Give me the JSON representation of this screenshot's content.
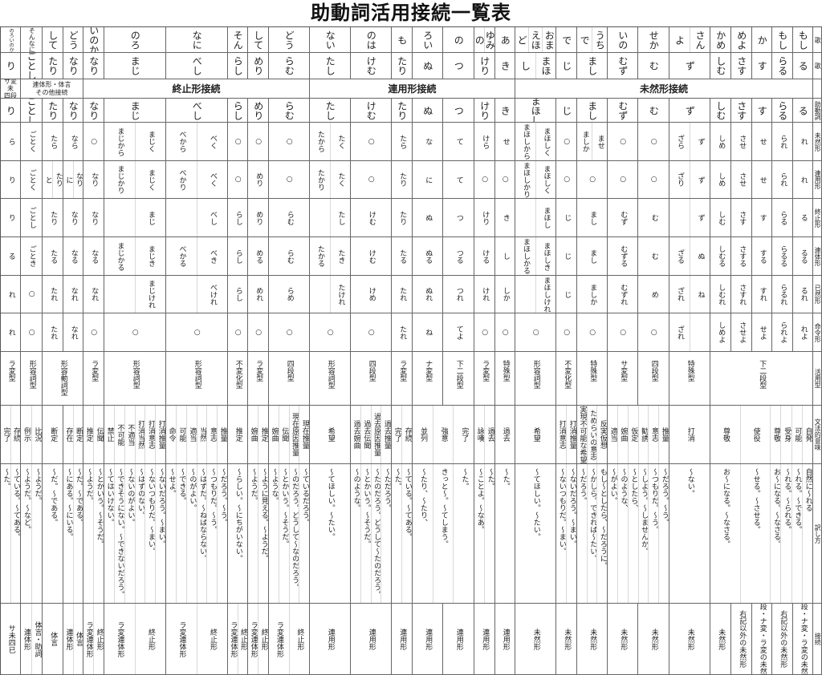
{
  "title": "助動詞活用接続一覧表",
  "row_labels": {
    "song1": "歌",
    "song2": "歌",
    "conn_header": "",
    "aux": "助動詞",
    "forms": [
      "未然形",
      "連用形",
      "終止形",
      "連体形",
      "已然形",
      "命令形"
    ],
    "type": "活用型",
    "meaning": "文法的意味",
    "translation": "訳し方",
    "connection": "接続"
  },
  "columns": [
    {
      "song1": "のろいのか",
      "song2": "り",
      "aux": "り",
      "forms": [
        "ら",
        "り",
        "り",
        "る",
        "れ",
        "れ"
      ]
    },
    {
      "song1": "そんなに",
      "song2": "ごとし",
      "aux": "ごとし",
      "forms": [
        "ごとく",
        "ごとく",
        "ごとし",
        "ごとき",
        "○",
        "○"
      ]
    },
    {
      "song1": "して",
      "song2": "たり",
      "aux": "たり",
      "forms": [
        "たら",
        [
          "たり",
          "と"
        ],
        "たり",
        "たる",
        "たれ",
        "たれ"
      ]
    },
    {
      "song1": "どう",
      "song2": "なり",
      "aux": "なり",
      "forms": [
        "なら",
        [
          "なり",
          "に"
        ],
        "なり",
        "なる",
        "なれ",
        "なれ"
      ]
    },
    {
      "song1": "いのか",
      "song2": "なり",
      "aux": "なり",
      "forms": [
        "○",
        "なり",
        "なり",
        "なる",
        "なれ",
        "○"
      ]
    },
    {
      "song1": "のろ",
      "song2": "まじ",
      "aux": "まじ",
      "forms": [
        [
          "まじく",
          "まじから"
        ],
        [
          "まじく",
          "まじかり"
        ],
        [
          "まじ",
          ""
        ],
        [
          "まじき",
          "まじかる"
        ],
        [
          "まじけれ",
          ""
        ],
        "○"
      ]
    },
    {
      "song1": "なに",
      "song2": "べし",
      "aux": "べし",
      "forms": [
        [
          "べく",
          "べから"
        ],
        [
          "べく",
          "べかり"
        ],
        [
          "べし",
          ""
        ],
        [
          "べき",
          "べかる"
        ],
        [
          "べけれ",
          ""
        ],
        "○"
      ]
    },
    {
      "song1": "そん",
      "song2": "らし",
      "aux": "らし",
      "forms": [
        "○",
        "○",
        "らし",
        "らし",
        "らし",
        "○"
      ]
    },
    {
      "song1": "して",
      "song2": "めり",
      "aux": "めり",
      "forms": [
        "○",
        "めり",
        "めり",
        "める",
        "めれ",
        "○"
      ]
    },
    {
      "song1": "どう",
      "song2": "らむ",
      "aux": "らむ",
      "forms": [
        "○",
        "○",
        "らむ",
        "らむ",
        "らめ",
        "○"
      ]
    },
    {
      "song1": "ない",
      "song2": "たし",
      "aux": "たし",
      "forms": [
        [
          "たく",
          "たから"
        ],
        [
          "たく",
          "たかり"
        ],
        [
          "たし",
          ""
        ],
        [
          "たき",
          "たかる"
        ],
        [
          "たけれ",
          ""
        ],
        "○"
      ]
    },
    {
      "song1": "のは",
      "song2": "けむ",
      "aux": "けむ",
      "forms": [
        "○",
        "○",
        "けむ",
        "けむ",
        "けめ",
        "○"
      ]
    },
    {
      "song1": "も",
      "song2": "たり",
      "aux": "たり",
      "forms": [
        "たら",
        "たり",
        "たり",
        "たる",
        "たれ",
        "たれ"
      ]
    },
    {
      "song1": "ろい",
      "song2": "ぬ",
      "aux": "ぬ",
      "forms": [
        "な",
        "に",
        "ぬ",
        "ぬる",
        "ぬれ",
        "ね"
      ]
    },
    {
      "song1": "の",
      "song2": "つ",
      "aux": "つ",
      "forms": [
        "て",
        "て",
        "つ",
        "つる",
        "つれ",
        "てよ"
      ]
    },
    {
      "song1": [
        "ゆみ",
        "の"
      ],
      "song2": "けり",
      "aux": "けり",
      "forms": [
        "けら",
        "○",
        "けり",
        "ける",
        "けれ",
        "○"
      ]
    },
    {
      "song1": "あ",
      "song2": "き",
      "aux": "き",
      "forms": [
        "せ",
        "○",
        "き",
        "し",
        "しか",
        "○"
      ]
    },
    {
      "song1": [
        "おま",
        "えほ",
        "ど"
      ],
      "song2": [
        "まほ",
        "し"
      ],
      "aux": "まほし",
      "forms": [
        [
          "まほしく",
          "まほしから"
        ],
        [
          "まほしく",
          "まほしかり"
        ],
        [
          "まほし",
          ""
        ],
        [
          "まほしき",
          "まほしかる"
        ],
        [
          "まほしけれ",
          ""
        ],
        "○"
      ]
    },
    {
      "song1": "で",
      "song2": "じ",
      "aux": "じ",
      "forms": [
        "○",
        "○",
        "じ",
        "じ",
        "じ",
        "○"
      ]
    },
    {
      "song1": [
        "うち",
        "で"
      ],
      "song2": "まし",
      "aux": "まし",
      "forms": [
        [
          "ませ",
          "ましか"
        ],
        "○",
        "まし",
        "まし",
        "ましか",
        "○"
      ]
    },
    {
      "song1": "いの",
      "song2": "むず",
      "aux": "むず",
      "forms": [
        "○",
        "○",
        "むず",
        "むずる",
        "むずれ",
        "○"
      ]
    },
    {
      "song1": "せか",
      "song2": "む",
      "aux": "む",
      "forms": [
        "○",
        "○",
        "む",
        "む",
        "め",
        "○"
      ]
    },
    {
      "song1": [
        "さん",
        "よ"
      ],
      "song2": "ず",
      "aux": "ず",
      "forms": [
        [
          "ず",
          "ざら"
        ],
        [
          "ず",
          "ざり"
        ],
        [
          "ず",
          ""
        ],
        [
          "ぬ",
          "ざる"
        ],
        [
          "ね",
          "ざれ"
        ],
        [
          "",
          "ざれ"
        ]
      ]
    },
    {
      "song1": "かめ",
      "song2": "しむ",
      "aux": "しむ",
      "forms": [
        "しめ",
        "しめ",
        "しむ",
        "しむる",
        "しむれ",
        "しめよ"
      ]
    },
    {
      "song1": "めよ",
      "song2": "さす",
      "aux": "さす",
      "forms": [
        "させ",
        "させ",
        "さす",
        "さする",
        "さすれ",
        "させよ"
      ]
    },
    {
      "song1": "か",
      "song2": "す",
      "aux": "す",
      "forms": [
        "せ",
        "せ",
        "す",
        "する",
        "すれ",
        "せよ"
      ]
    },
    {
      "song1": "もし",
      "song2": "らる",
      "aux": "らる",
      "forms": [
        "られ",
        "られ",
        "らる",
        "らるる",
        "らるれ",
        "られよ"
      ]
    },
    {
      "song1": "もし",
      "song2": "る",
      "aux": "る",
      "forms": [
        "れ",
        "れ",
        "る",
        "るる",
        "るれ",
        "れよ"
      ]
    }
  ],
  "connection_groups": [
    {
      "span": 1,
      "label": "サ変\n未\n四段"
    },
    {
      "span": 3,
      "label": "連体形・体言\nその他接続"
    },
    {
      "span": 6,
      "label": "終止形接続"
    },
    {
      "span": 7,
      "label": "連用形接続"
    },
    {
      "span": 11,
      "label": "未然形接続"
    }
  ],
  "types": [
    {
      "span": 1,
      "label": "ラ変型"
    },
    {
      "span": 1,
      "label": "形容詞型"
    },
    {
      "span": 2,
      "label": "形容動詞型"
    },
    {
      "span": 1,
      "label": "ラ変型"
    },
    {
      "span": 1,
      "label": "形容詞型"
    },
    {
      "span": 1,
      "label": "形容詞型"
    },
    {
      "span": 1,
      "label": "不変化型"
    },
    {
      "span": 1,
      "label": "ラ変型"
    },
    {
      "span": 1,
      "label": "四段型"
    },
    {
      "span": 1,
      "label": "形容詞型"
    },
    {
      "span": 1,
      "label": "四段型"
    },
    {
      "span": 1,
      "label": "ラ変型"
    },
    {
      "span": 1,
      "label": "ナ変型"
    },
    {
      "span": 1,
      "label": "下二段型"
    },
    {
      "span": 1,
      "label": "ラ変型"
    },
    {
      "span": 1,
      "label": "特殊型"
    },
    {
      "span": 1,
      "label": "形容詞型"
    },
    {
      "span": 1,
      "label": "不変化型"
    },
    {
      "span": 1,
      "label": "特殊型"
    },
    {
      "span": 1,
      "label": "サ変型"
    },
    {
      "span": 1,
      "label": "四段型"
    },
    {
      "span": 1,
      "label": "特殊型"
    },
    {
      "span": 5,
      "label": "下二段型"
    }
  ],
  "meanings": [
    {
      "span": 1,
      "items": [
        {
          "meaning": "存続",
          "translation": "〜ている。〜てある。"
        },
        {
          "meaning": "完了",
          "translation": "〜た。"
        }
      ]
    },
    {
      "span": 1,
      "items": [
        {
          "meaning": "比況",
          "translation": "〜ようだ。"
        },
        {
          "meaning": "例示",
          "translation": "〜ようだ。〜など。"
        }
      ]
    },
    {
      "span": 1,
      "items": [
        {
          "meaning": "断定",
          "translation": "〜だ。〜である。"
        }
      ]
    },
    {
      "span": 1,
      "items": [
        {
          "meaning": "断定",
          "translation": "〜だ。〜である。"
        },
        {
          "meaning": "存在",
          "translation": "〜にある。〜にいる。"
        }
      ]
    },
    {
      "span": 1,
      "items": [
        {
          "meaning": "伝聞",
          "translation": "〜とかいう。〜そうだ。"
        },
        {
          "meaning": "推定",
          "translation": "〜ようだ。"
        }
      ]
    },
    {
      "span": 1,
      "items": [
        {
          "meaning": "打消推量",
          "translation": "〜ないだろう。〜まい。"
        },
        {
          "meaning": "打消意志",
          "translation": "〜ないつもりだ。〜まい。"
        },
        {
          "meaning": "打消当然",
          "translation": "〜はずのない。"
        },
        {
          "meaning": "不適当",
          "translation": "〜ないのがよい。"
        },
        {
          "meaning": "不可能",
          "translation": "〜できそうにない。〜できないだろう。"
        },
        {
          "meaning": "禁止",
          "translation": "〜てはいけない。"
        }
      ]
    },
    {
      "span": 1,
      "items": [
        {
          "meaning": "推量",
          "translation": "〜だろう。〜う。"
        },
        {
          "meaning": "意志",
          "translation": "〜つもりだ。〜う。"
        },
        {
          "meaning": "当然",
          "translation": "〜はずだ。〜ねばならない。"
        },
        {
          "meaning": "適当",
          "translation": "〜のがよい。"
        },
        {
          "meaning": "可能",
          "translation": "〜できる。"
        },
        {
          "meaning": "命令",
          "translation": "〜せよ。"
        }
      ]
    },
    {
      "span": 1,
      "items": [
        {
          "meaning": "推定",
          "translation": "〜らしい。〜にちがいない。"
        }
      ]
    },
    {
      "span": 1,
      "items": [
        {
          "meaning": "推定",
          "translation": "〜ように見える。〜ようだ。"
        },
        {
          "meaning": "婉曲",
          "translation": "〜ようだ。"
        }
      ]
    },
    {
      "span": 1,
      "items": [
        {
          "meaning": "現在推量",
          "translation": "〜ているだろう。"
        },
        {
          "meaning": "現在原因推量",
          "translation": "〜のだろう。どうして〜なのだろう。"
        },
        {
          "meaning": "伝聞",
          "translation": "〜とかいう。〜そうだ。"
        },
        {
          "meaning": "婉曲",
          "translation": "〜ような。"
        }
      ]
    },
    {
      "span": 1,
      "items": [
        {
          "meaning": "希望",
          "translation": "〜てほしい。〜たい。"
        }
      ]
    },
    {
      "span": 1,
      "items": [
        {
          "meaning": "過去推量",
          "translation": "〜ただろう。"
        },
        {
          "meaning": "過去原因推量",
          "translation": "〜たのだろう。どうして〜たのだろう。"
        },
        {
          "meaning": "過去伝聞",
          "translation": "〜とかいう。〜そうだ。"
        },
        {
          "meaning": "過去婉曲",
          "translation": "〜のような。"
        }
      ]
    },
    {
      "span": 1,
      "items": [
        {
          "meaning": "存続",
          "translation": "〜ている。〜てある。"
        },
        {
          "meaning": "完了",
          "translation": "〜た。"
        }
      ]
    },
    {
      "span": 2,
      "items": [
        {
          "meaning": "完了",
          "translation": "〜た。"
        },
        {
          "meaning": "強意",
          "translation": "きっと〜。〜てしまう。"
        },
        {
          "meaning": "並列",
          "translation": "〜たり、〜たり、"
        }
      ]
    },
    {
      "span": 1,
      "items": [
        {
          "meaning": "過去",
          "translation": "〜た。"
        },
        {
          "meaning": "詠嘆",
          "translation": "〜ことよ。〜なあ。"
        }
      ]
    },
    {
      "span": 1,
      "items": [
        {
          "meaning": "過去",
          "translation": "〜た。"
        }
      ]
    },
    {
      "span": 1,
      "items": [
        {
          "meaning": "希望",
          "translation": "〜てほしい。〜たい。"
        }
      ]
    },
    {
      "span": 1,
      "items": [
        {
          "meaning": "打消推量",
          "translation": "〜ないだろう。〜まい。"
        },
        {
          "meaning": "打消意志",
          "translation": "〜ないつもりだ。〜まい。"
        }
      ]
    },
    {
      "span": 1,
      "items": [
        {
          "meaning": "反実仮想",
          "translation": "もし〜としたら、〜だろうに。"
        },
        {
          "meaning": "ためらいの意志",
          "translation": "〜かしら。できれば〜たい。"
        },
        {
          "meaning": "実現不可能な希望",
          "translation": "〜だろう。"
        }
      ]
    },
    {
      "span": 2,
      "items": [
        {
          "meaning": "推量",
          "translation": "〜だろう。〜う。"
        },
        {
          "meaning": "意志",
          "translation": "〜つもりだ。〜う。"
        },
        {
          "meaning": "勧誘",
          "translation": "〜しよう。〜しませんか。"
        },
        {
          "meaning": "仮定",
          "translation": "〜としたら、"
        },
        {
          "meaning": "婉曲",
          "translation": "〜のような、"
        },
        {
          "meaning": "適当",
          "translation": "〜がよい。"
        }
      ]
    },
    {
      "span": 1,
      "items": [
        {
          "meaning": "打消",
          "translation": "〜ない。"
        }
      ]
    },
    {
      "span": 5,
      "items": [
        {
          "meaning": "自発",
          "translation": "自然に〜れる"
        },
        {
          "meaning": "可能",
          "translation": "〜れる。〜できる。"
        },
        {
          "meaning": "受身",
          "translation": "〜れる。〜られる。"
        },
        {
          "meaning": "尊敬",
          "translation": "お〜になる。〜なさる。"
        },
        {
          "meaning": "使役",
          "translation": "〜せる。〜させる。"
        },
        {
          "meaning": "尊敬",
          "translation": "お〜になる。〜なさる。"
        }
      ]
    }
  ],
  "connections": [
    [
      "サ未四已"
    ],
    [
      "体言・助詞",
      "連体形"
    ],
    [
      "体言"
    ],
    [
      "体言",
      "連体形"
    ],
    [
      "終止形",
      "ラ変連体形"
    ],
    [
      "終止形",
      "ラ変連体形"
    ],
    [
      "終止形",
      "ラ変連体形"
    ],
    [
      "終止形",
      "ラ変連体形"
    ],
    [
      "終止形",
      "ラ変連体形"
    ],
    [
      "終止形",
      "ラ変連体形"
    ],
    [
      "連用形"
    ],
    [
      "連用形"
    ],
    [
      "連用形"
    ],
    [
      "連用形"
    ],
    [
      "連用形"
    ],
    [
      "連用形"
    ],
    [
      "連用形"
    ],
    [
      "未然形"
    ],
    [
      "未然形"
    ],
    [
      "未然形"
    ],
    [
      "未然形"
    ],
    [
      "未然形"
    ],
    [
      "未然形"
    ],
    [
      "未然形"
    ],
    [
      "右記以外の未然形"
    ],
    [
      "四段・ナ変・ラ変の未然形"
    ],
    [
      "右記以外の未然形"
    ],
    [
      "四段・ナ変・ラ変の未然形"
    ]
  ]
}
